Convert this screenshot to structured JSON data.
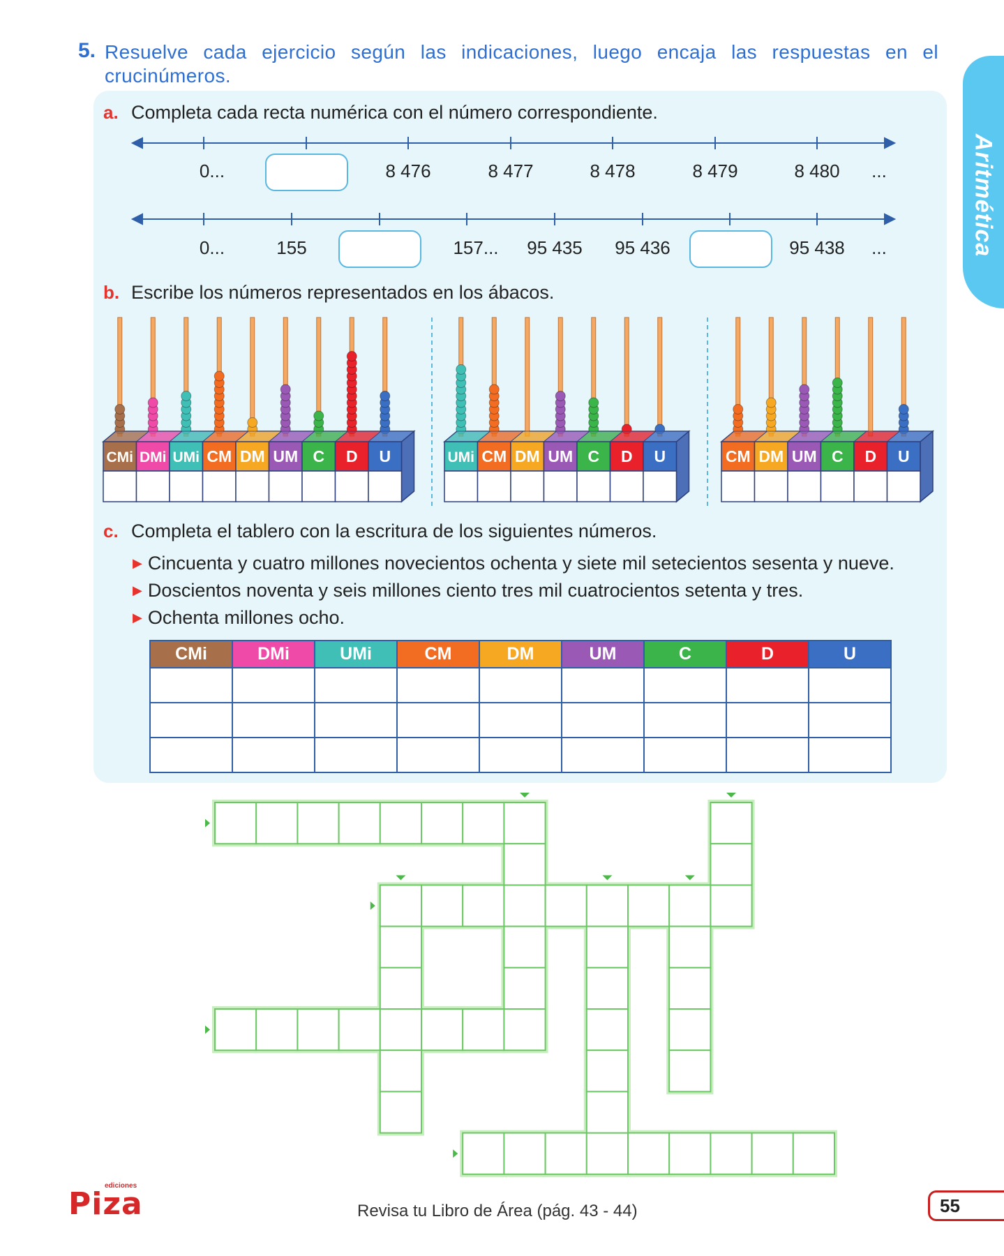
{
  "side_tab": {
    "label": "Aritmética"
  },
  "exercise": {
    "number": "5.",
    "instruction": "Resuelve cada ejercicio según las indicaciones, luego encaja las respuestas en el crucinúmeros."
  },
  "part_a": {
    "letter": "a.",
    "text": "Completa cada recta numérica con el número correspondiente.",
    "line1": [
      "0...",
      "",
      "8 476",
      "8 477",
      "8 478",
      "8 479",
      "8 480",
      "..."
    ],
    "line2": [
      "0...",
      "155",
      "",
      "157...",
      "95 435",
      "95 436",
      "",
      "95 438",
      "..."
    ]
  },
  "part_b": {
    "letter": "b.",
    "text": "Escribe los números representados en los ábacos.",
    "abacus1": {
      "labels": [
        "CMi",
        "DMi",
        "UMi",
        "CM",
        "DM",
        "UM",
        "C",
        "D",
        "U"
      ],
      "beads": [
        4,
        5,
        6,
        9,
        2,
        7,
        3,
        12,
        6
      ]
    },
    "abacus2": {
      "labels": [
        "UMi",
        "CM",
        "DM",
        "UM",
        "C",
        "D",
        "U"
      ],
      "beads": [
        10,
        7,
        0,
        6,
        5,
        1,
        1
      ]
    },
    "abacus3": {
      "labels": [
        "CM",
        "DM",
        "UM",
        "C",
        "D",
        "U"
      ],
      "beads": [
        4,
        5,
        7,
        8,
        0,
        4
      ]
    },
    "colors": {
      "CMi": "#a8704a",
      "DMi": "#ef4aa8",
      "UMi": "#3fbfb6",
      "CM": "#f26d21",
      "DM": "#f7a823",
      "UM": "#9b59b6",
      "C": "#3bb44a",
      "D": "#e8212a",
      "U": "#3b6fc4"
    }
  },
  "part_c": {
    "letter": "c.",
    "text": "Completa el tablero con la escritura de los siguientes números.",
    "items": [
      "Cincuenta y cuatro millones novecientos ochenta y siete mil setecientos sesenta y nueve.",
      "Doscientos noventa y seis millones ciento tres mil cuatrocientos setenta y tres.",
      "Ochenta millones ocho."
    ],
    "table_headers": [
      "CMi",
      "DMi",
      "UMi",
      "CM",
      "DM",
      "UM",
      "C",
      "D",
      "U"
    ],
    "rows": 3
  },
  "footer": {
    "review_text": "Revisa tu Libro de Área (pág. 43 - 44)",
    "page_number": "55",
    "logo": "Piza",
    "logo_sub": "ediciones"
  }
}
